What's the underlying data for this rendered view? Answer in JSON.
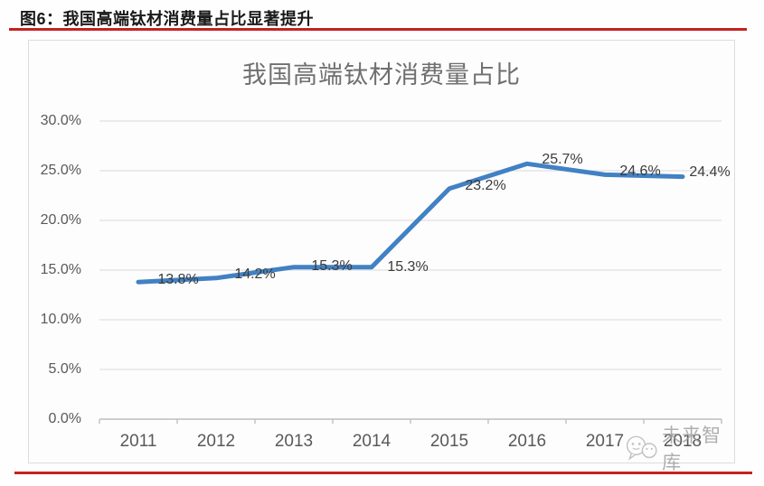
{
  "figure": {
    "caption": "图6：我国高端钛材消费量占比显著提升",
    "watermark": {
      "text": "未来智库",
      "icon": "chat-smiley-icon"
    },
    "accent_red": "#c4231e"
  },
  "chart_data": {
    "type": "line",
    "title": "我国高端钛材消费量占比",
    "categories": [
      "2011",
      "2012",
      "2013",
      "2014",
      "2015",
      "2016",
      "2017",
      "2018"
    ],
    "values": [
      13.8,
      14.2,
      15.3,
      15.3,
      23.2,
      25.7,
      24.6,
      24.4
    ],
    "data_labels": [
      "13.8%",
      "14.2%",
      "15.3%",
      "15.3%",
      "23.2%",
      "25.7%",
      "24.6%",
      "24.4%"
    ],
    "y_ticks": [
      "30.0%",
      "25.0%",
      "20.0%",
      "15.0%",
      "10.0%",
      "5.0%",
      "0.0%"
    ],
    "ylim": [
      0,
      30
    ],
    "y_tick_step": 5,
    "grid": true,
    "legend_position": "none",
    "line_color": "#4181c4",
    "grid_color": "#d9d9d9",
    "axis_color": "#bfbfbf",
    "xlabel": "",
    "ylabel": ""
  }
}
